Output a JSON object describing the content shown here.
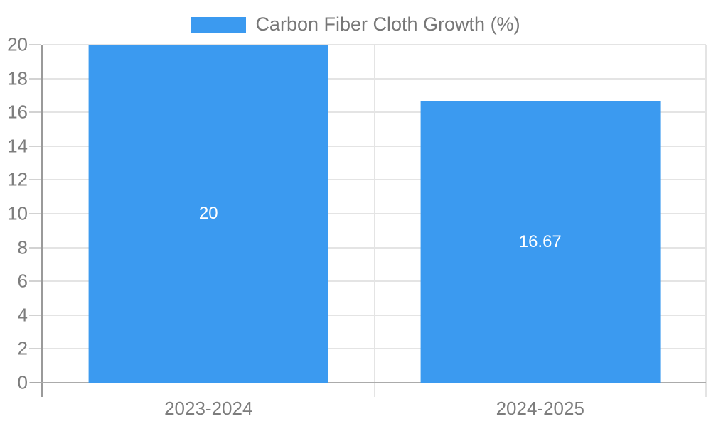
{
  "chart_data": {
    "type": "bar",
    "title": "Carbon Fiber Cloth Growth (%)",
    "categories": [
      "2023-2024",
      "2024-2025"
    ],
    "values": [
      20,
      16.67
    ],
    "bar_labels": [
      "20",
      "16.67"
    ],
    "ylim": [
      0,
      20
    ],
    "ytick_step": 2,
    "yticks": [
      0,
      2,
      4,
      6,
      8,
      10,
      12,
      14,
      16,
      18,
      20
    ],
    "grid": true,
    "legend": {
      "position": "top-center",
      "label": "Carbon Fiber Cloth Growth (%)"
    },
    "colors": {
      "bar": "#3b9af0",
      "grid": "#e4e4e4",
      "tick": "#d2d2d2",
      "axis_y": "#9a9a9a",
      "axis_x": "#ababab",
      "tick_label": "#7d7d7d",
      "bar_label": "#ffffff",
      "legend_text": "#777777"
    }
  }
}
